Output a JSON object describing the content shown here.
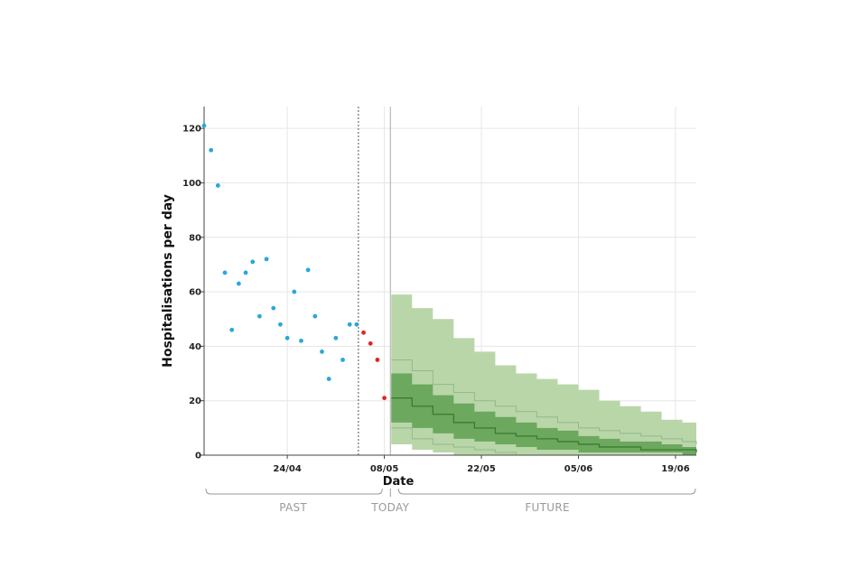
{
  "chart_data": {
    "type": "scatter",
    "title": "",
    "xlabel": "Date",
    "ylabel": "Hospitalisations per day",
    "x_ticks": [
      "24/04",
      "08/05",
      "22/05",
      "05/06",
      "19/06"
    ],
    "y_ticks": [
      0,
      20,
      40,
      60,
      80,
      100,
      120
    ],
    "ylim": [
      0,
      128
    ],
    "grid": true,
    "periods": [
      "PAST",
      "TODAY",
      "FUTURE"
    ],
    "colors": {
      "observed": "#2aa7d8",
      "recent": "#e0232a",
      "band_outer": "#b9d6a9",
      "band_inner": "#6ca85e",
      "median": "#3d7a32",
      "grid": "#e6e6e6"
    },
    "observed": {
      "dates": [
        "12/04",
        "13/04",
        "14/04",
        "15/04",
        "16/04",
        "17/04",
        "18/04",
        "19/04",
        "20/04",
        "21/04",
        "22/04",
        "23/04",
        "24/04",
        "25/04",
        "26/04",
        "27/04",
        "28/04",
        "29/04",
        "30/04",
        "01/05",
        "02/05",
        "03/05",
        "04/05"
      ],
      "values": [
        121,
        112,
        99,
        67,
        46,
        63,
        67,
        71,
        51,
        72,
        54,
        48,
        43,
        60,
        42,
        68,
        51,
        38,
        28,
        43,
        35,
        48,
        48
      ]
    },
    "recent": {
      "dates": [
        "05/05",
        "06/05",
        "07/05",
        "08/05"
      ],
      "values": [
        45,
        41,
        35,
        21
      ]
    },
    "forecast": {
      "dates": [
        "09/05",
        "12/05",
        "15/05",
        "18/05",
        "21/05",
        "24/05",
        "27/05",
        "30/05",
        "02/06",
        "05/06",
        "08/06",
        "11/06",
        "14/06",
        "17/06",
        "20/06",
        "22/06"
      ],
      "median": [
        21,
        18,
        15,
        12,
        10,
        8,
        7,
        6,
        5,
        4,
        3,
        3,
        2,
        2,
        2,
        1
      ],
      "inner_low": [
        15,
        12,
        10,
        8,
        6,
        5,
        4,
        3,
        2,
        2,
        1,
        1,
        1,
        1,
        1,
        0
      ],
      "inner_high": [
        30,
        26,
        22,
        19,
        16,
        14,
        12,
        10,
        9,
        7,
        6,
        5,
        5,
        4,
        3,
        3
      ],
      "mid_low": [
        10,
        6,
        4,
        3,
        2,
        1,
        0,
        0,
        0,
        0,
        0,
        0,
        0,
        0,
        0,
        0
      ],
      "mid_high": [
        35,
        31,
        26,
        23,
        20,
        18,
        16,
        14,
        12,
        10,
        9,
        8,
        7,
        6,
        5,
        4
      ],
      "outer_low": [
        8,
        4,
        2,
        1,
        0,
        0,
        0,
        0,
        0,
        0,
        0,
        0,
        0,
        0,
        0,
        0
      ],
      "outer_high": [
        59,
        54,
        50,
        43,
        38,
        33,
        30,
        28,
        26,
        24,
        20,
        18,
        16,
        13,
        12,
        11
      ]
    }
  }
}
